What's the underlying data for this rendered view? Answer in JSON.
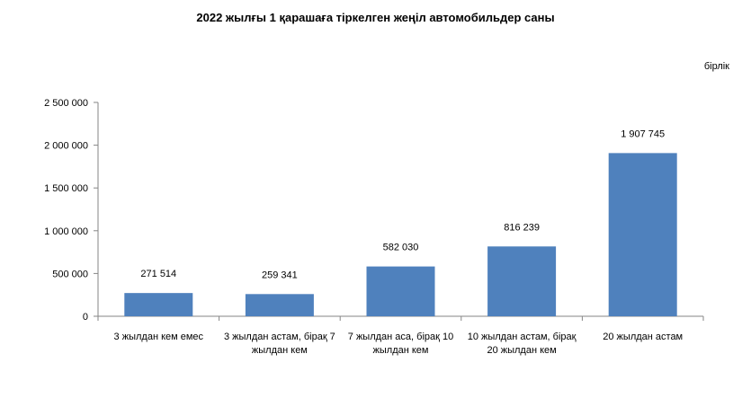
{
  "chart_data": {
    "type": "bar",
    "title": "2022 жылғы 1 қарашаға тіркелген жеңіл автомобильдер саны",
    "unit_label": "бірлік",
    "categories": [
      [
        "3 жылдан кем емес"
      ],
      [
        "3 жылдан астам, бірақ 7",
        "жылдан кем"
      ],
      [
        "7 жылдан аса, бірақ 10",
        "жылдан кем"
      ],
      [
        "10 жылдан астам, бірақ",
        "20 жылдан кем"
      ],
      [
        "20 жылдан астам"
      ]
    ],
    "values": [
      271514,
      259341,
      582030,
      816239,
      1907745
    ],
    "value_labels": [
      "271 514",
      "259 341",
      "582 030",
      "816 239",
      "1 907 745"
    ],
    "ylim": [
      0,
      2500000
    ],
    "yticks": [
      0,
      500000,
      1000000,
      1500000,
      2000000,
      2500000
    ],
    "ytick_labels": [
      "0",
      "500 000",
      "1 000 000",
      "1 500 000",
      "2 000 000",
      "2 500 000"
    ],
    "bar_color": "#4f81bd",
    "grid": false,
    "legend": "none"
  }
}
